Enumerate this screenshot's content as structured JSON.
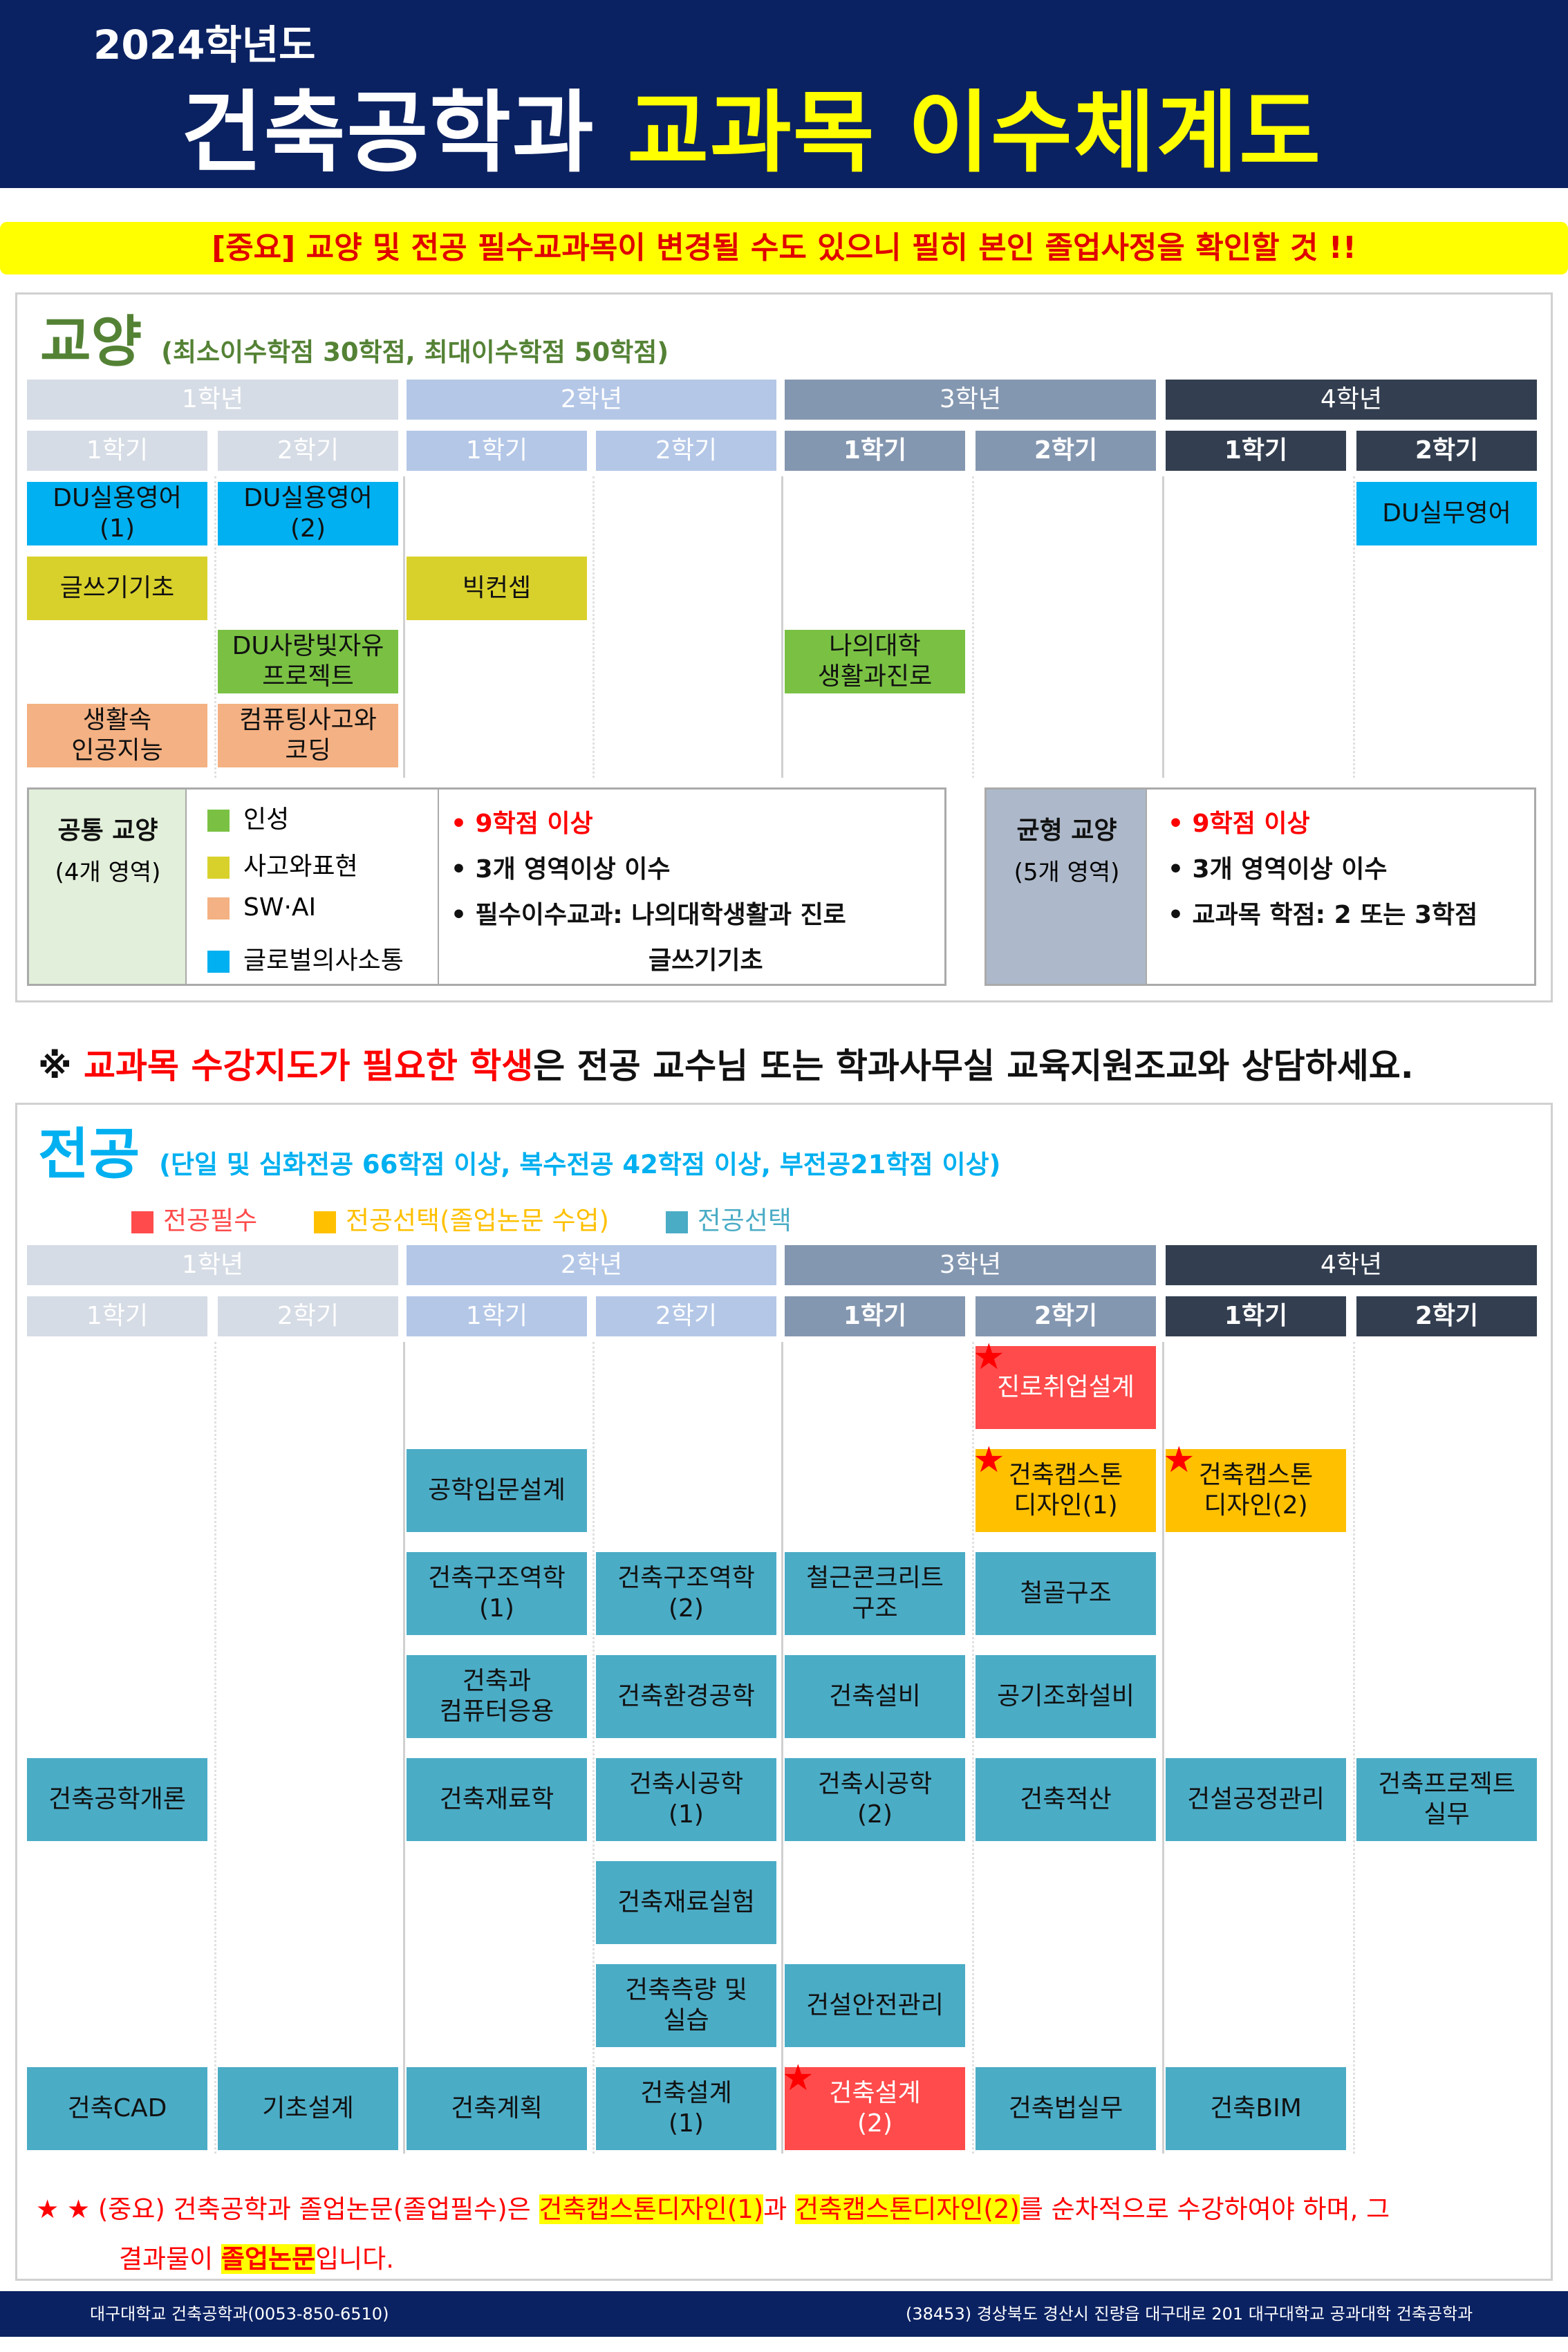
{
  "header": {
    "year": "2024학년도",
    "title_white": "건축공학과",
    "title_yellow": "교과목 이수체계도"
  },
  "banner": "[중요] 교양 및 전공 필수교과목이 변경될 수도 있으니 필히 본인 졸업사정을 확인할 것 !!",
  "years": [
    "1학년",
    "2학년",
    "3학년",
    "4학년"
  ],
  "terms": [
    "1학기",
    "2학기"
  ],
  "colors": {
    "navy": "#0b2262",
    "year1": "#d6dce5",
    "year2": "#b4c7e7",
    "year3": "#8497b0",
    "year4": "#333f50",
    "teal": "#4bacc6",
    "red": "#ff4b4b",
    "orange": "#ffc000",
    "global": "#00b0f0",
    "thinking": "#d9d12b",
    "swai": "#f4b183",
    "character": "#7ac143"
  },
  "general": {
    "title": "교양",
    "subtitle": "(최소이수학점 30학점, 최대이수학점 50학점)",
    "rows": [
      [
        {
          "name": "DU실용영어\n(1)",
          "sem": 0,
          "cat": "global"
        },
        {
          "name": "DU실용영어\n(2)",
          "sem": 1,
          "cat": "global"
        },
        {
          "name": "DU실무영어",
          "sem": 7,
          "cat": "global"
        }
      ],
      [
        {
          "name": "글쓰기기초",
          "sem": 0,
          "cat": "thinking"
        },
        {
          "name": "빅컨셉",
          "sem": 2,
          "cat": "thinking"
        }
      ],
      [
        {
          "name": "DU사랑빛자유\n프로젝트",
          "sem": 1,
          "cat": "character"
        },
        {
          "name": "나의대학\n생활과진로",
          "sem": 4,
          "cat": "character"
        }
      ],
      [
        {
          "name": "생활속\n인공지능",
          "sem": 0,
          "cat": "swai"
        },
        {
          "name": "컴퓨팅사고와\n코딩",
          "sem": 1,
          "cat": "swai"
        }
      ]
    ],
    "common": {
      "title": "공통 교양",
      "sub": "(4개 영역)",
      "legend": [
        "인성",
        "사고와표현",
        "SW·AI",
        "글로벌의사소통"
      ],
      "rules": [
        "• 9학점 이상",
        "• 3개 영역이상 이수",
        "• 필수이수교과: 나의대학생활과 진로",
        "글쓰기기초"
      ]
    },
    "balanced": {
      "title": "균형 교양",
      "sub": "(5개 영역)",
      "rules": [
        "• 9학점 이상",
        "• 3개 영역이상 이수",
        "• 교과목 학점: 2 또는 3학점"
      ]
    }
  },
  "notice": {
    "mark": "※",
    "red": "교과목 수강지도가 필요한 학생",
    "rest": "은 전공 교수님 또는 학과사무실 교육지원조교와 상담하세요."
  },
  "major": {
    "title": "전공",
    "subtitle": "(단일 및 심화전공 66학점 이상, 복수전공 42학점 이상, 부전공21학점 이상)",
    "legend": [
      {
        "label": "전공필수",
        "color": "#ff4b4b",
        "text": "#ff4b4b"
      },
      {
        "label": "전공선택(졸업논문 수업)",
        "color": "#ffc000",
        "text": "#ffc000"
      },
      {
        "label": "전공선택",
        "color": "#4bacc6",
        "text": "#4bacc6"
      }
    ],
    "rows": [
      [
        {
          "name": "진로취업설계",
          "sem": 5,
          "cat": "red",
          "star": true
        }
      ],
      [
        {
          "name": "공학입문설계",
          "sem": 2,
          "cat": "teal"
        },
        {
          "name": "건축캡스톤\n디자인(1)",
          "sem": 5,
          "cat": "orange",
          "star": true
        },
        {
          "name": "건축캡스톤\n디자인(2)",
          "sem": 6,
          "cat": "orange",
          "star": true
        }
      ],
      [
        {
          "name": "건축구조역학\n(1)",
          "sem": 2,
          "cat": "teal"
        },
        {
          "name": "건축구조역학\n(2)",
          "sem": 3,
          "cat": "teal"
        },
        {
          "name": "철근콘크리트\n구조",
          "sem": 4,
          "cat": "teal"
        },
        {
          "name": "철골구조",
          "sem": 5,
          "cat": "teal"
        }
      ],
      [
        {
          "name": "건축과\n컴퓨터응용",
          "sem": 2,
          "cat": "teal"
        },
        {
          "name": "건축환경공학",
          "sem": 3,
          "cat": "teal"
        },
        {
          "name": "건축설비",
          "sem": 4,
          "cat": "teal"
        },
        {
          "name": "공기조화설비",
          "sem": 5,
          "cat": "teal"
        }
      ],
      [
        {
          "name": "건축공학개론",
          "sem": 0,
          "cat": "teal"
        },
        {
          "name": "건축재료학",
          "sem": 2,
          "cat": "teal"
        },
        {
          "name": "건축시공학\n(1)",
          "sem": 3,
          "cat": "teal"
        },
        {
          "name": "건축시공학\n(2)",
          "sem": 4,
          "cat": "teal"
        },
        {
          "name": "건축적산",
          "sem": 5,
          "cat": "teal"
        },
        {
          "name": "건설공정관리",
          "sem": 6,
          "cat": "teal"
        },
        {
          "name": "건축프로젝트\n실무",
          "sem": 7,
          "cat": "teal"
        }
      ],
      [
        {
          "name": "건축재료실험",
          "sem": 3,
          "cat": "teal"
        }
      ],
      [
        {
          "name": "건축측량 및\n실습",
          "sem": 3,
          "cat": "teal"
        },
        {
          "name": "건설안전관리",
          "sem": 4,
          "cat": "teal"
        }
      ],
      [
        {
          "name": "건축CAD",
          "sem": 0,
          "cat": "teal"
        },
        {
          "name": "기초설계",
          "sem": 1,
          "cat": "teal"
        },
        {
          "name": "건축계획",
          "sem": 2,
          "cat": "teal"
        },
        {
          "name": "건축설계\n(1)",
          "sem": 3,
          "cat": "teal"
        },
        {
          "name": "건축설계\n(2)",
          "sem": 4,
          "cat": "red",
          "star": true
        },
        {
          "name": "건축법실무",
          "sem": 5,
          "cat": "teal"
        },
        {
          "name": "건축BIM",
          "sem": 6,
          "cat": "teal"
        }
      ]
    ],
    "note": {
      "p1": "★ ★ (중요) 건축공학과 졸업논문(졸업필수)은 ",
      "h1": "건축캡스톤디자인(1)",
      "p2": "과 ",
      "h2": "건축캡스톤디자인(2)",
      "p3": "를 순차적으로  수강하여야 하며, 그",
      "p4": "결과물이 ",
      "h3": "졸업논문",
      "p5": "입니다."
    }
  },
  "footer": {
    "left": "대구대학교 건축공학과(0053-850-6510)",
    "right": "(38453) 경상북도 경산시 진량읍 대구대로 201 대구대학교 공과대학 건축공학과"
  }
}
